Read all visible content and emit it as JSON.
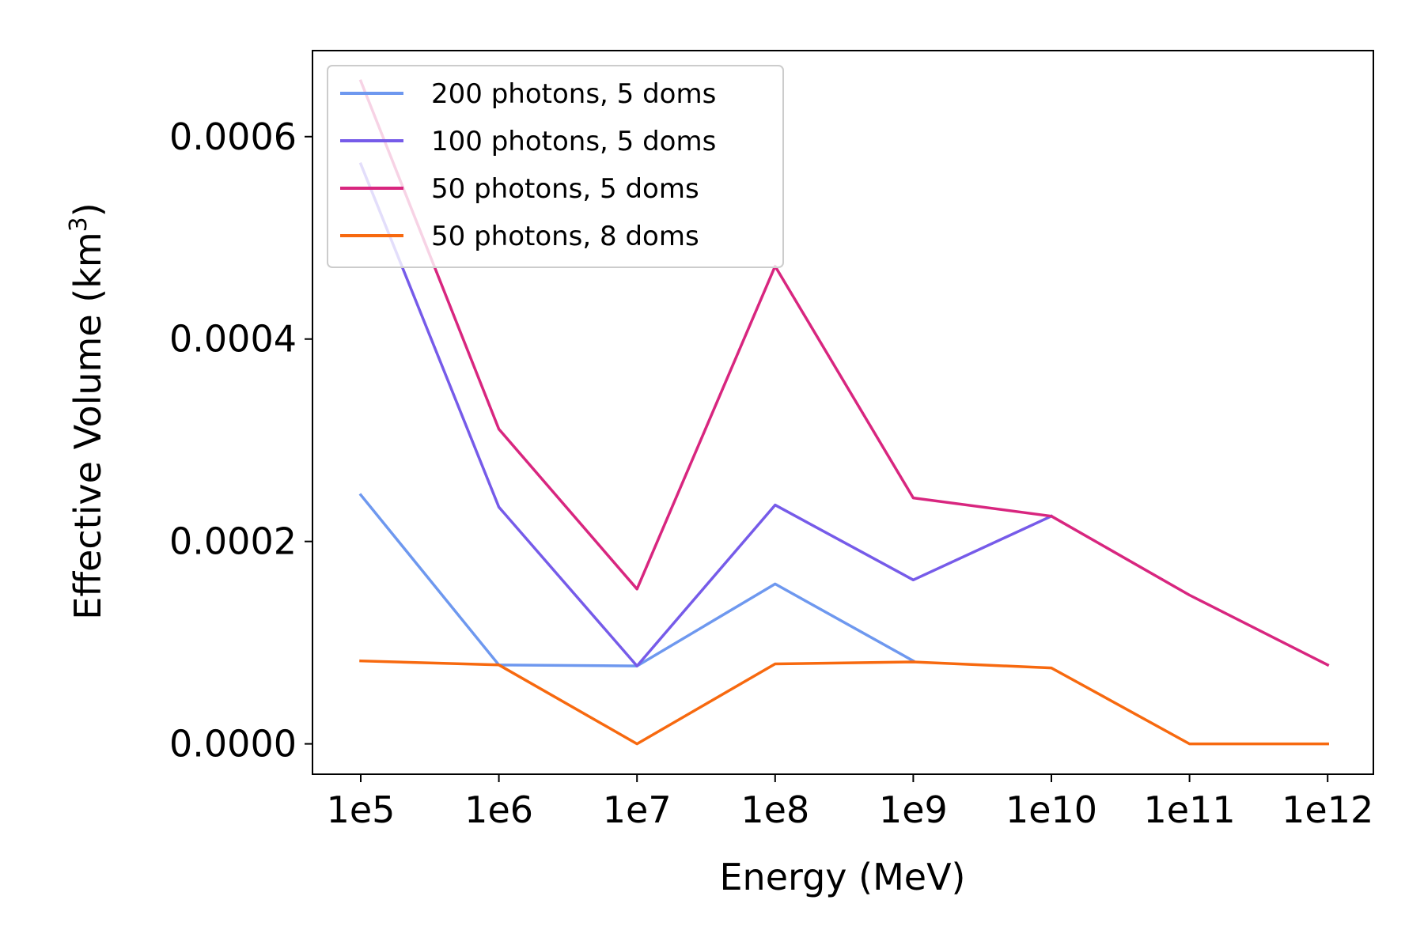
{
  "chart_data": {
    "type": "line",
    "x": [
      "1e5",
      "1e6",
      "1e7",
      "1e8",
      "1e9",
      "1e10",
      "1e11",
      "1e12"
    ],
    "xlabel": "Energy (MeV)",
    "ylabel": "Effective Volume (km",
    "ylabel_sup": "3",
    "ylabel_end": ")",
    "ylim": [
      -3e-05,
      0.000685
    ],
    "yticks": [
      0.0,
      0.0002,
      0.0004,
      0.0006
    ],
    "ytick_labels": [
      "0.0000",
      "0.0002",
      "0.0004",
      "0.0006"
    ],
    "grid": false,
    "legend_position": "top-left",
    "series": [
      {
        "name": "200 photons, 5 doms",
        "color": "#6e98ef",
        "values": [
          0.000246,
          7.8e-05,
          7.7e-05,
          0.000158,
          8.2e-05,
          null,
          null,
          null
        ]
      },
      {
        "name": "100 photons, 5 doms",
        "color": "#765be9",
        "values": [
          0.000573,
          0.000234,
          7.7e-05,
          0.000236,
          0.000162,
          0.000225,
          null,
          null
        ]
      },
      {
        "name": "50 photons, 5 doms",
        "color": "#d8267f",
        "values": [
          0.000655,
          0.000311,
          0.000153,
          0.000472,
          0.000243,
          0.000225,
          0.000147,
          7.8e-05
        ]
      },
      {
        "name": "50 photons, 8 doms",
        "color": "#f7690f",
        "values": [
          8.2e-05,
          7.8e-05,
          0.0,
          7.9e-05,
          8.1e-05,
          7.5e-05,
          0.0,
          0.0
        ]
      }
    ]
  }
}
